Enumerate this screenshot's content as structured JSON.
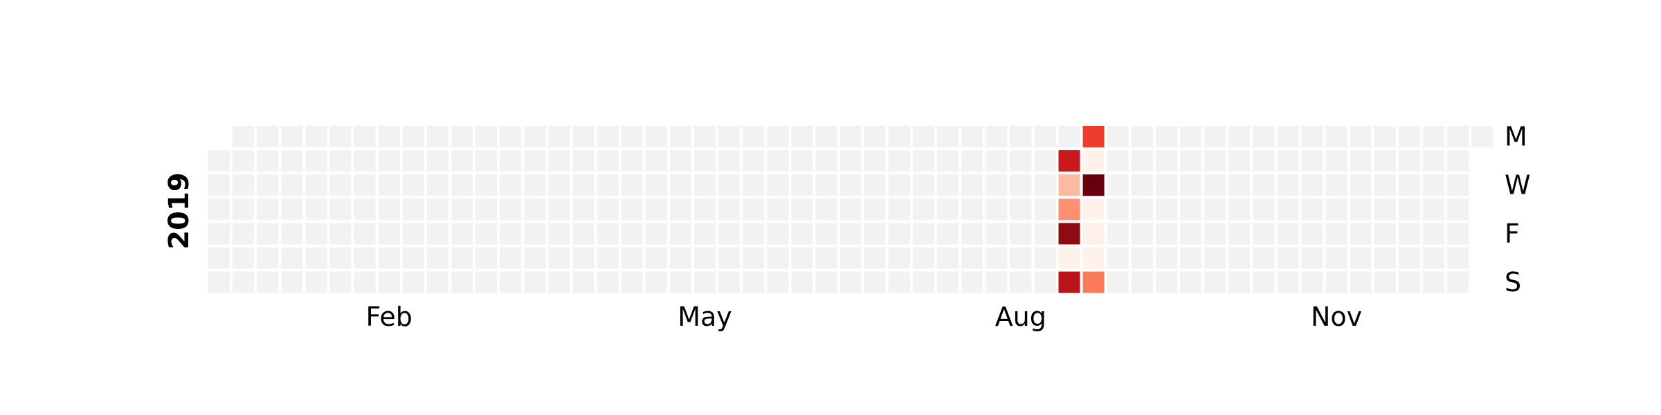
{
  "chart_data": {
    "type": "heatmap",
    "title": "",
    "year": "2019",
    "xlabel": "",
    "ylabel": "2019",
    "month_labels": [
      {
        "label": "Feb",
        "week": 7
      },
      {
        "label": "May",
        "week": 20
      },
      {
        "label": "Aug",
        "week": 33
      },
      {
        "label": "Nov",
        "week": 46
      }
    ],
    "day_labels": [
      {
        "label": "M",
        "day": 0
      },
      {
        "label": "W",
        "day": 2
      },
      {
        "label": "F",
        "day": 4
      },
      {
        "label": "S",
        "day": 6
      }
    ],
    "colormap": "Reds",
    "empty_color": "#f2f2f2",
    "grid": false,
    "legend": "none",
    "first_week_start_day": 1,
    "num_weeks": 53,
    "last_week_end_day": 0,
    "values": [
      {
        "week": 35,
        "day": 1,
        "level": 0.75
      },
      {
        "week": 35,
        "day": 2,
        "level": 0.25
      },
      {
        "week": 35,
        "day": 3,
        "level": 0.38
      },
      {
        "week": 35,
        "day": 4,
        "level": 0.92
      },
      {
        "week": 35,
        "day": 5,
        "level": 0.02
      },
      {
        "week": 35,
        "day": 6,
        "level": 0.8
      },
      {
        "week": 36,
        "day": 0,
        "level": 0.62
      },
      {
        "week": 36,
        "day": 1,
        "level": 0.02
      },
      {
        "week": 36,
        "day": 2,
        "level": 1.0
      },
      {
        "week": 36,
        "day": 3,
        "level": 0.02
      },
      {
        "week": 36,
        "day": 4,
        "level": 0.03
      },
      {
        "week": 36,
        "day": 5,
        "level": 0.02
      },
      {
        "week": 36,
        "day": 6,
        "level": 0.45
      }
    ]
  }
}
